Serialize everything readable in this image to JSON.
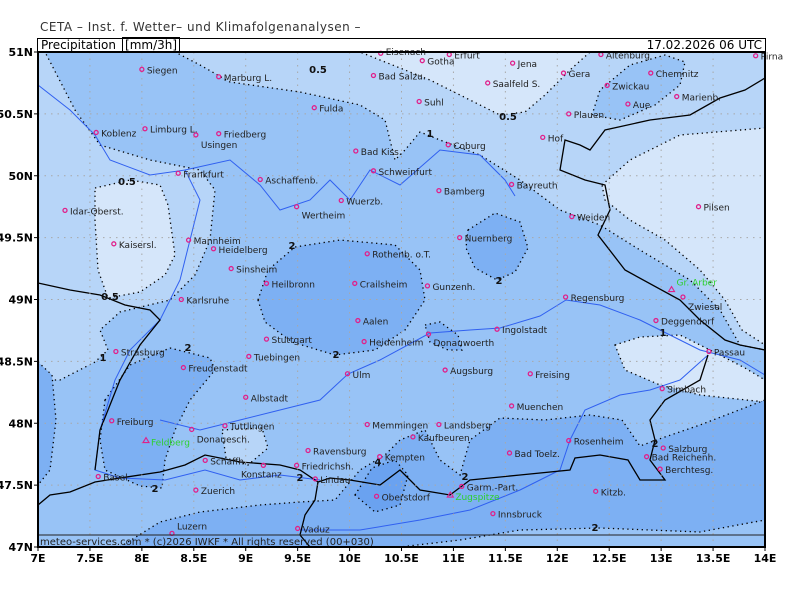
{
  "header": {
    "institute": "CETA – Inst. f. Wetter– und Klimafolgenanalysen –",
    "parameter": "Precipitation_",
    "unit": "[mm/3h]",
    "valid_time": "17.02.2026 06 UTC"
  },
  "footer": "meteo-services.com * (c)2026 IWKF * All rights reserved (00+030)",
  "axes": {
    "lon_labels": [
      "7E",
      "7.5E",
      "8E",
      "8.5E",
      "9E",
      "9.5E",
      "10E",
      "10.5E",
      "11E",
      "11.5E",
      "12E",
      "12.5E",
      "13E",
      "13.5E",
      "14E"
    ],
    "lat_labels": [
      "51N",
      "50.5N",
      "50N",
      "49.5N",
      "49N",
      "48.5N",
      "48N",
      "47.5N",
      "47N"
    ],
    "lon_range": [
      7,
      14
    ],
    "lat_range": [
      47,
      51
    ],
    "grid": true
  },
  "legend_colors": {
    "below_0_5": "#d5e6fa",
    "0_5_to_1": "#b7d5f8",
    "1_to_2": "#98c3f6",
    "2_to_4": "#7db0f3",
    "above_4": "#6aa2f0",
    "city_marker": "#e0208a",
    "peak_marker": "#2ed02e"
  },
  "contour_labels": [
    "0.5",
    "0.5",
    "0.5",
    "0.5",
    "1",
    "1",
    "1",
    "2",
    "2",
    "2",
    "2",
    "2",
    "2",
    "2",
    "2",
    "2",
    "4"
  ],
  "cities": [
    {
      "name": "Eisenach",
      "lon": 10.3,
      "lat": 50.99
    },
    {
      "name": "Gotha",
      "lon": 10.7,
      "lat": 50.93
    },
    {
      "name": "Erfurt",
      "lon": 10.96,
      "lat": 50.98
    },
    {
      "name": "Jena",
      "lon": 11.57,
      "lat": 50.91
    },
    {
      "name": "Gera",
      "lon": 12.06,
      "lat": 50.83
    },
    {
      "name": "Altenburg",
      "lon": 12.42,
      "lat": 50.98
    },
    {
      "name": "Chemnitz",
      "lon": 12.9,
      "lat": 50.83
    },
    {
      "name": "Pirna",
      "lon": 13.91,
      "lat": 50.97
    },
    {
      "name": "Siegen",
      "lon": 8.0,
      "lat": 50.86
    },
    {
      "name": "Marburg L.",
      "lon": 8.74,
      "lat": 50.8
    },
    {
      "name": "Bad Salzu.",
      "lon": 10.23,
      "lat": 50.81
    },
    {
      "name": "Saalfeld S.",
      "lon": 11.33,
      "lat": 50.75
    },
    {
      "name": "Suhl",
      "lon": 10.67,
      "lat": 50.6
    },
    {
      "name": "Zwickau",
      "lon": 12.48,
      "lat": 50.73
    },
    {
      "name": "Aue",
      "lon": 12.68,
      "lat": 50.58
    },
    {
      "name": "Marienb.",
      "lon": 13.15,
      "lat": 50.64
    },
    {
      "name": "Fulda",
      "lon": 9.66,
      "lat": 50.55
    },
    {
      "name": "Koblenz",
      "lon": 7.56,
      "lat": 50.35
    },
    {
      "name": "Limburg L.",
      "lon": 8.03,
      "lat": 50.38
    },
    {
      "name": "Usingen",
      "lon": 8.52,
      "lat": 50.33
    },
    {
      "name": "Friedberg",
      "lon": 8.74,
      "lat": 50.34
    },
    {
      "name": "Plauen",
      "lon": 12.11,
      "lat": 50.5
    },
    {
      "name": "Hof",
      "lon": 11.86,
      "lat": 50.31
    },
    {
      "name": "Coburg",
      "lon": 10.95,
      "lat": 50.25
    },
    {
      "name": "Bad Kiss.",
      "lon": 10.06,
      "lat": 50.2
    },
    {
      "name": "Frankfurt",
      "lon": 8.35,
      "lat": 50.02
    },
    {
      "name": "Aschaffenb.",
      "lon": 9.14,
      "lat": 49.97
    },
    {
      "name": "Schweinfurt",
      "lon": 10.23,
      "lat": 50.04
    },
    {
      "name": "Bayreuth",
      "lon": 11.56,
      "lat": 49.93
    },
    {
      "name": "Bamberg",
      "lon": 10.86,
      "lat": 49.88
    },
    {
      "name": "Idar-Oberst.",
      "lon": 7.26,
      "lat": 49.72
    },
    {
      "name": "Wertheim",
      "lon": 9.49,
      "lat": 49.75
    },
    {
      "name": "Wuerzb.",
      "lon": 9.92,
      "lat": 49.8
    },
    {
      "name": "Weiden",
      "lon": 12.14,
      "lat": 49.67
    },
    {
      "name": "Pilsen",
      "lon": 13.36,
      "lat": 49.75
    },
    {
      "name": "Nuernberg",
      "lon": 11.06,
      "lat": 49.5
    },
    {
      "name": "Mannheim",
      "lon": 8.45,
      "lat": 49.48
    },
    {
      "name": "Kaisersl.",
      "lon": 7.73,
      "lat": 49.45
    },
    {
      "name": "Heidelberg",
      "lon": 8.69,
      "lat": 49.41
    },
    {
      "name": "Rothenb. o.T.",
      "lon": 10.17,
      "lat": 49.37
    },
    {
      "name": "Sinsheim",
      "lon": 8.86,
      "lat": 49.25
    },
    {
      "name": "Heilbronn",
      "lon": 9.2,
      "lat": 49.13
    },
    {
      "name": "Crailsheim",
      "lon": 10.05,
      "lat": 49.13
    },
    {
      "name": "Gunzenh.",
      "lon": 10.75,
      "lat": 49.11
    },
    {
      "name": "Karlsruhe",
      "lon": 8.38,
      "lat": 49.0
    },
    {
      "name": "Regensburg",
      "lon": 12.08,
      "lat": 49.02
    },
    {
      "name": "Zwiesel",
      "lon": 13.21,
      "lat": 49.02
    },
    {
      "name": "Aalen",
      "lon": 10.08,
      "lat": 48.83
    },
    {
      "name": "Deggendorf",
      "lon": 12.95,
      "lat": 48.83
    },
    {
      "name": "Stuttgart",
      "lon": 9.2,
      "lat": 48.68
    },
    {
      "name": "Heidenheim",
      "lon": 10.14,
      "lat": 48.66
    },
    {
      "name": "Donauwoerth",
      "lon": 10.76,
      "lat": 48.72
    },
    {
      "name": "Ingolstadt",
      "lon": 11.42,
      "lat": 48.76
    },
    {
      "name": "Strasburg",
      "lon": 7.75,
      "lat": 48.58
    },
    {
      "name": "Passau",
      "lon": 13.46,
      "lat": 48.58
    },
    {
      "name": "Tuebingen",
      "lon": 9.03,
      "lat": 48.54
    },
    {
      "name": "Freudenstadt",
      "lon": 8.4,
      "lat": 48.45
    },
    {
      "name": "Ulm",
      "lon": 9.98,
      "lat": 48.4
    },
    {
      "name": "Augsburg",
      "lon": 10.92,
      "lat": 48.43
    },
    {
      "name": "Freising",
      "lon": 11.74,
      "lat": 48.4
    },
    {
      "name": "Simbach",
      "lon": 13.01,
      "lat": 48.28
    },
    {
      "name": "Albstadt",
      "lon": 9.0,
      "lat": 48.21
    },
    {
      "name": "Muenchen",
      "lon": 11.56,
      "lat": 48.14
    },
    {
      "name": "Freiburg",
      "lon": 7.71,
      "lat": 48.02
    },
    {
      "name": "Tuttlingen",
      "lon": 8.8,
      "lat": 47.98
    },
    {
      "name": "Donauesch.",
      "lon": 8.48,
      "lat": 47.95
    },
    {
      "name": "Memmingen",
      "lon": 10.17,
      "lat": 47.99
    },
    {
      "name": "Landsberg",
      "lon": 10.86,
      "lat": 47.99
    },
    {
      "name": "Kaufbeuren",
      "lon": 10.61,
      "lat": 47.89
    },
    {
      "name": "Rosenheim",
      "lon": 12.11,
      "lat": 47.86
    },
    {
      "name": "Salzburg",
      "lon": 13.02,
      "lat": 47.8
    },
    {
      "name": "Ravensburg",
      "lon": 9.6,
      "lat": 47.78
    },
    {
      "name": "Bad Toelz.",
      "lon": 11.54,
      "lat": 47.76
    },
    {
      "name": "Kempten",
      "lon": 10.29,
      "lat": 47.73
    },
    {
      "name": "Bad Reichenh.",
      "lon": 12.86,
      "lat": 47.73
    },
    {
      "name": "Schaffh.",
      "lon": 8.61,
      "lat": 47.7
    },
    {
      "name": "Konstanz",
      "lon": 9.17,
      "lat": 47.66
    },
    {
      "name": "Friedrichsh.",
      "lon": 9.49,
      "lat": 47.66
    },
    {
      "name": "Berchtesg.",
      "lon": 12.99,
      "lat": 47.63
    },
    {
      "name": "Lindau",
      "lon": 9.67,
      "lat": 47.55
    },
    {
      "name": "Basel",
      "lon": 7.58,
      "lat": 47.57
    },
    {
      "name": "Garm.-Part.",
      "lon": 11.08,
      "lat": 47.49
    },
    {
      "name": "Zuerich",
      "lon": 8.52,
      "lat": 47.46
    },
    {
      "name": "Kitzb.",
      "lon": 12.37,
      "lat": 47.45
    },
    {
      "name": "Oberstdorf",
      "lon": 10.26,
      "lat": 47.41
    },
    {
      "name": "Innsbruck",
      "lon": 11.38,
      "lat": 47.27
    },
    {
      "name": "Luzern",
      "lon": 8.29,
      "lat": 47.11
    },
    {
      "name": "Vaduz",
      "lon": 9.5,
      "lat": 47.15
    }
  ],
  "peaks": [
    {
      "name": "Feldberg",
      "lon": 8.04,
      "lat": 47.86
    },
    {
      "name": "Gr. Arber",
      "lon": 13.1,
      "lat": 49.08
    },
    {
      "name": "Zugspitze",
      "lon": 10.97,
      "lat": 47.42
    }
  ]
}
